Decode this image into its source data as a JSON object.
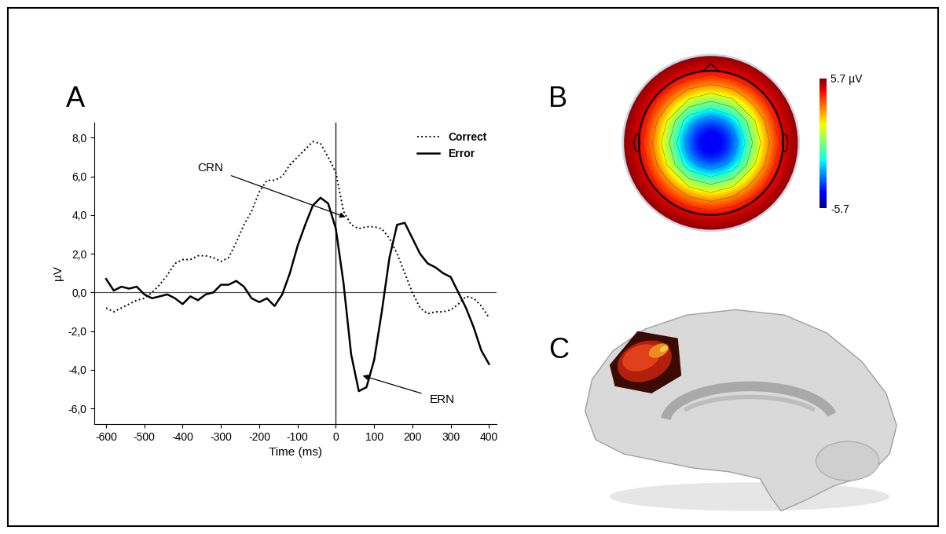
{
  "chart_data": [
    {
      "type": "line",
      "title": "A",
      "x_label": "Time (ms)",
      "y_label": "µV",
      "x": [
        -600,
        -580,
        -560,
        -540,
        -520,
        -500,
        -480,
        -460,
        -440,
        -420,
        -400,
        -380,
        -360,
        -340,
        -320,
        -300,
        -280,
        -260,
        -240,
        -220,
        -200,
        -180,
        -160,
        -140,
        -120,
        -100,
        -80,
        -60,
        -40,
        -20,
        0,
        20,
        40,
        60,
        80,
        100,
        120,
        140,
        160,
        180,
        200,
        220,
        240,
        260,
        280,
        300,
        320,
        340,
        360,
        380,
        400
      ],
      "series": [
        {
          "name": "Correct",
          "color": "#000000",
          "line_style": "dotted",
          "values": [
            -0.8,
            -1.0,
            -0.8,
            -0.6,
            -0.4,
            -0.3,
            0.0,
            0.4,
            0.9,
            1.5,
            1.7,
            1.7,
            1.9,
            1.9,
            1.8,
            1.6,
            1.8,
            2.6,
            3.5,
            4.2,
            5.2,
            5.8,
            5.8,
            6.0,
            6.6,
            7.0,
            7.4,
            7.8,
            7.7,
            7.0,
            6.2,
            4.2,
            3.5,
            3.3,
            3.4,
            3.4,
            3.3,
            2.8,
            2.0,
            1.0,
            0.0,
            -0.8,
            -1.1,
            -1.0,
            -1.0,
            -0.9,
            -0.6,
            -0.2,
            -0.3,
            -0.7,
            -1.3
          ]
        },
        {
          "name": "Error",
          "color": "#000000",
          "line_style": "solid",
          "values": [
            0.7,
            0.1,
            0.3,
            0.2,
            0.3,
            -0.1,
            -0.3,
            -0.2,
            -0.1,
            -0.3,
            -0.6,
            -0.2,
            -0.4,
            -0.1,
            0.0,
            0.4,
            0.4,
            0.6,
            0.3,
            -0.3,
            -0.5,
            -0.3,
            -0.7,
            -0.1,
            1.0,
            2.4,
            3.5,
            4.5,
            4.9,
            4.6,
            3.3,
            0.5,
            -3.2,
            -5.1,
            -4.9,
            -3.5,
            -1.0,
            1.8,
            3.5,
            3.6,
            2.8,
            2.0,
            1.5,
            1.3,
            1.0,
            0.8,
            0.0,
            -0.8,
            -1.8,
            -3.0,
            -3.7
          ]
        }
      ],
      "xlim": [
        -630,
        420
      ],
      "xticks": [
        -600,
        -500,
        -400,
        -300,
        -200,
        -100,
        0,
        100,
        200,
        300,
        400
      ],
      "ylim": [
        -6.8,
        8.8
      ],
      "yticks": [
        {
          "value": -6,
          "label": "-6,0"
        },
        {
          "value": -4,
          "label": "-4,0"
        },
        {
          "value": -2,
          "label": "-2,0"
        },
        {
          "value": 0,
          "label": "0,0"
        },
        {
          "value": 2,
          "label": "2,0"
        },
        {
          "value": 4,
          "label": "4,0"
        },
        {
          "value": 6,
          "label": "6,0"
        },
        {
          "value": 8,
          "label": "8,0"
        }
      ],
      "grid": false,
      "legend": "upper right",
      "annotations": [
        {
          "text": "CRN",
          "x": 25,
          "y": 3.9
        },
        {
          "text": "ERN",
          "x": 70,
          "y": -4.3
        }
      ]
    },
    {
      "type": "heatmap",
      "title": "B",
      "cells": [
        [
          5.7,
          5.7,
          5.7,
          5.7,
          5.7,
          5.7,
          5.7,
          5.7,
          5.7
        ],
        [
          5.7,
          5.7,
          5.4,
          4.8,
          4.3,
          4.8,
          5.4,
          5.7,
          5.7
        ],
        [
          5.7,
          5.4,
          3.8,
          1.5,
          0.5,
          1.5,
          3.8,
          5.4,
          5.7
        ],
        [
          5.7,
          4.8,
          1.5,
          -2.5,
          -4.0,
          -2.5,
          1.5,
          4.8,
          5.7
        ],
        [
          5.7,
          4.3,
          0.5,
          -4.0,
          -5.7,
          -4.0,
          0.5,
          4.3,
          5.7
        ],
        [
          5.7,
          4.8,
          1.5,
          -2.5,
          -4.0,
          -2.5,
          1.5,
          4.8,
          5.7
        ],
        [
          5.7,
          5.4,
          3.8,
          1.5,
          0.5,
          1.5,
          3.8,
          5.4,
          5.7
        ],
        [
          5.7,
          5.7,
          5.4,
          4.8,
          4.3,
          4.8,
          5.4,
          5.7,
          5.7
        ],
        [
          5.7,
          5.7,
          5.7,
          5.7,
          5.7,
          5.7,
          5.7,
          5.7,
          5.7
        ]
      ],
      "colorbar": {
        "range": [
          -5.7,
          5.7
        ],
        "ticks": [
          {
            "value": 5.7,
            "label": "5.7 µV"
          },
          -5.7
        ]
      }
    },
    {
      "type": "image",
      "title": "C"
    }
  ]
}
